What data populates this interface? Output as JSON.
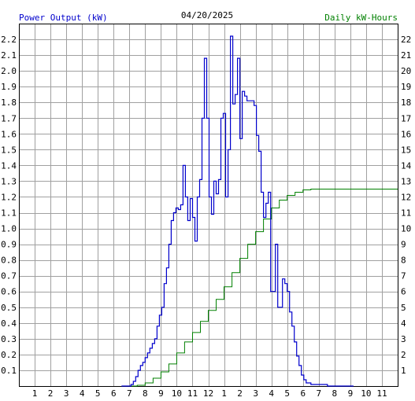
{
  "header": {
    "left_label": "Power Output (kW)",
    "date": "04/20/2025",
    "right_label": "Daily kW-Hours"
  },
  "colors": {
    "background": "#ffffff",
    "grid": "#a0a0a0",
    "power_line": "#0000cc",
    "energy_line": "#008000",
    "left_label_color": "#0000cc",
    "right_label_color": "#008000"
  },
  "chart_data": {
    "type": "line",
    "title": "04/20/2025",
    "xlabel": "",
    "ylabel": "Power Output (kW)",
    "y2label": "Daily kW-Hours",
    "grid": true,
    "x_range": [
      0,
      24
    ],
    "x_tick_labels": [
      "1",
      "2",
      "3",
      "4",
      "5",
      "6",
      "7",
      "8",
      "9",
      "10",
      "11",
      "12",
      "1",
      "2",
      "3",
      "4",
      "5",
      "6",
      "7",
      "8",
      "9",
      "10",
      "11"
    ],
    "ylim": [
      0,
      2.3
    ],
    "y_ticks": [
      0.1,
      0.2,
      0.3,
      0.4,
      0.5,
      0.6,
      0.7,
      0.8,
      0.9,
      1.0,
      1.1,
      1.2,
      1.3,
      1.4,
      1.5,
      1.6,
      1.7,
      1.8,
      1.9,
      2.0,
      2.1,
      2.2
    ],
    "y2lim": [
      0,
      23
    ],
    "y2_ticks": [
      1,
      2,
      3,
      4,
      5,
      6,
      7,
      8,
      9,
      10,
      11,
      12,
      13,
      14,
      15,
      16,
      17,
      18,
      19,
      20,
      21,
      22
    ],
    "series": [
      {
        "name": "Power Output (kW)",
        "axis": "left",
        "step": true,
        "x": [
          6.5,
          7.1,
          7.25,
          7.4,
          7.55,
          7.7,
          7.85,
          8.0,
          8.15,
          8.3,
          8.45,
          8.6,
          8.75,
          8.9,
          9.05,
          9.2,
          9.35,
          9.5,
          9.65,
          9.8,
          9.95,
          10.1,
          10.25,
          10.4,
          10.55,
          10.7,
          10.85,
          11.0,
          11.15,
          11.3,
          11.45,
          11.6,
          11.75,
          11.9,
          12.05,
          12.2,
          12.35,
          12.5,
          12.65,
          12.8,
          12.95,
          13.1,
          13.25,
          13.4,
          13.55,
          13.7,
          13.85,
          14.0,
          14.15,
          14.3,
          14.45,
          14.6,
          14.75,
          14.9,
          15.05,
          15.2,
          15.35,
          15.5,
          15.65,
          15.8,
          15.95,
          16.1,
          16.25,
          16.4,
          16.55,
          16.7,
          16.85,
          17.0,
          17.15,
          17.3,
          17.45,
          17.6,
          17.75,
          17.9,
          18.05,
          18.2,
          18.35,
          18.5,
          18.65,
          18.8,
          18.95,
          19.1,
          19.25,
          19.4,
          19.55,
          19.7,
          19.85,
          20.0,
          20.15,
          20.3,
          20.45,
          20.6,
          20.75,
          20.9,
          21.05
        ],
        "y": [
          0,
          0.01,
          0.03,
          0.06,
          0.1,
          0.13,
          0.15,
          0.18,
          0.21,
          0.24,
          0.27,
          0.3,
          0.38,
          0.45,
          0.5,
          0.65,
          0.75,
          0.9,
          1.05,
          1.1,
          1.13,
          1.12,
          1.15,
          1.4,
          1.2,
          1.05,
          1.19,
          1.07,
          0.92,
          1.2,
          1.31,
          1.7,
          2.08,
          1.7,
          1.2,
          1.09,
          1.3,
          1.22,
          1.31,
          1.7,
          1.73,
          1.2,
          1.5,
          2.22,
          1.79,
          1.85,
          2.08,
          1.57,
          1.87,
          1.84,
          1.81,
          1.81,
          1.81,
          1.78,
          1.59,
          1.49,
          1.23,
          1.07,
          1.16,
          1.23,
          0.6,
          0.6,
          0.9,
          0.5,
          0.5,
          0.68,
          0.65,
          0.6,
          0.47,
          0.38,
          0.28,
          0.19,
          0.13,
          0.07,
          0.04,
          0.02,
          0.02,
          0.01,
          0.01,
          0.01,
          0.01,
          0.01,
          0.01,
          0.01,
          0,
          0,
          0,
          0,
          0,
          0,
          0,
          0,
          0,
          0,
          0
        ]
      },
      {
        "name": "Daily kW-Hours",
        "axis": "right",
        "step": true,
        "x": [
          7.0,
          7.5,
          8.0,
          8.5,
          9.0,
          9.5,
          10.0,
          10.5,
          11.0,
          11.5,
          12.0,
          12.5,
          13.0,
          13.5,
          14.0,
          14.5,
          15.0,
          15.5,
          16.0,
          16.5,
          17.0,
          17.5,
          18.0,
          18.5,
          19.0,
          19.5,
          20.0,
          21.0,
          22.0,
          23.0,
          24.0
        ],
        "y": [
          0,
          0.05,
          0.2,
          0.5,
          0.9,
          1.4,
          2.1,
          2.8,
          3.4,
          4.1,
          4.8,
          5.5,
          6.3,
          7.2,
          8.1,
          9.0,
          9.8,
          10.6,
          11.3,
          11.8,
          12.1,
          12.3,
          12.45,
          12.5,
          12.5,
          12.5,
          12.5,
          12.5,
          12.5,
          12.5,
          12.5
        ]
      }
    ]
  }
}
